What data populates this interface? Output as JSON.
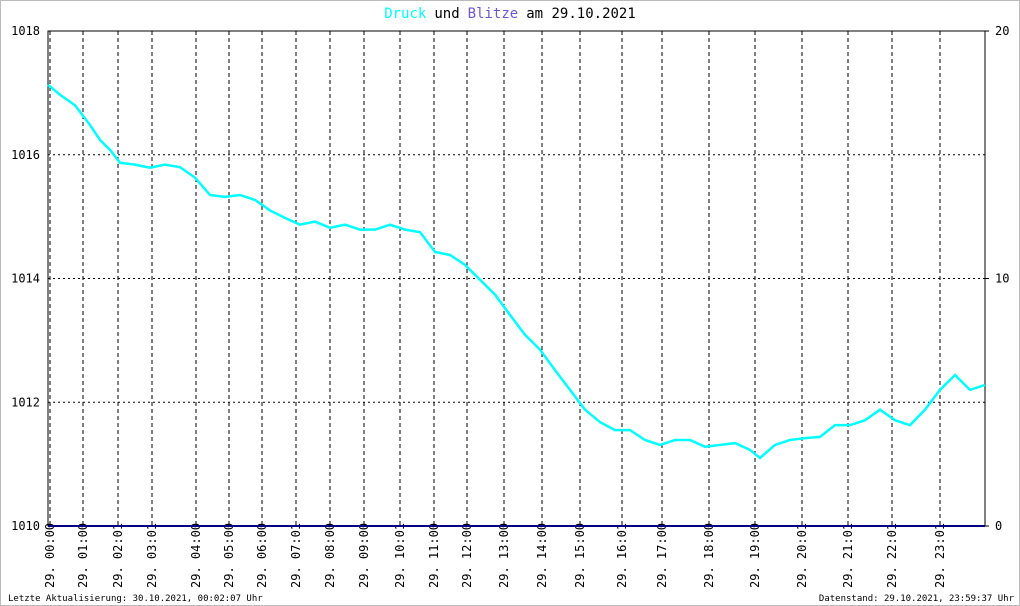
{
  "chart_data": {
    "type": "line",
    "title_connector": "und",
    "title_date": "am 29.10.2021",
    "footer_left": "Letzte Aktualisierung: 30.10.2021, 00:02:07 Uhr",
    "footer_right": "Datenstand: 29.10.2021, 23:59:37 Uhr",
    "x": [
      0,
      12,
      27,
      42,
      52,
      62,
      72,
      87,
      102,
      117,
      132,
      147,
      162,
      177,
      192,
      207,
      222,
      237,
      252,
      267,
      282,
      297,
      312,
      327,
      342,
      357,
      372,
      387,
      402,
      417,
      432,
      447,
      462,
      477,
      492,
      507,
      522,
      537,
      552,
      567,
      582,
      597,
      612,
      627,
      642,
      657,
      672,
      687,
      702,
      712,
      727,
      742,
      757,
      772,
      787,
      802,
      817,
      832,
      847,
      862,
      877,
      892,
      907,
      922,
      937
    ],
    "xlim": [
      0,
      937
    ],
    "xticks": [
      {
        "value": 2,
        "label": "29. 00:00"
      },
      {
        "value": 35,
        "label": "29. 01:00"
      },
      {
        "value": 70,
        "label": "29. 02:01"
      },
      {
        "value": 104,
        "label": "29. 03:01"
      },
      {
        "value": 148,
        "label": "29. 04:00"
      },
      {
        "value": 181,
        "label": "29. 05:00"
      },
      {
        "value": 214,
        "label": "29. 06:00"
      },
      {
        "value": 248,
        "label": "29. 07:01"
      },
      {
        "value": 282,
        "label": "29. 08:00"
      },
      {
        "value": 316,
        "label": "29. 09:00"
      },
      {
        "value": 352,
        "label": "29. 10:01"
      },
      {
        "value": 386,
        "label": "29. 11:00"
      },
      {
        "value": 419,
        "label": "29. 12:00"
      },
      {
        "value": 456,
        "label": "29. 13:00"
      },
      {
        "value": 494,
        "label": "29. 14:00"
      },
      {
        "value": 532,
        "label": "29. 15:00"
      },
      {
        "value": 574,
        "label": "29. 16:01"
      },
      {
        "value": 614,
        "label": "29. 17:00"
      },
      {
        "value": 661,
        "label": "29. 18:00"
      },
      {
        "value": 707,
        "label": "29. 19:00"
      },
      {
        "value": 754,
        "label": "29. 20:01"
      },
      {
        "value": 800,
        "label": "29. 21:01"
      },
      {
        "value": 844,
        "label": "29. 22:01"
      },
      {
        "value": 892,
        "label": "29. 23:01"
      }
    ],
    "ylim": [
      1010,
      1018
    ],
    "yticks": [
      1010,
      1012,
      1014,
      1016,
      1018
    ],
    "y2lim": [
      0,
      20
    ],
    "y2ticks": [
      0,
      10,
      20
    ],
    "grid": true,
    "series": [
      {
        "name": "Druck",
        "color": "#00ffff",
        "axis": "y",
        "values": [
          1017.13,
          1016.97,
          1016.8,
          1016.48,
          1016.24,
          1016.08,
          1015.87,
          1015.84,
          1015.79,
          1015.84,
          1015.8,
          1015.63,
          1015.35,
          1015.32,
          1015.35,
          1015.27,
          1015.1,
          1014.98,
          1014.87,
          1014.92,
          1014.82,
          1014.87,
          1014.79,
          1014.79,
          1014.87,
          1014.79,
          1014.75,
          1014.43,
          1014.38,
          1014.22,
          1013.98,
          1013.74,
          1013.41,
          1013.09,
          1012.85,
          1012.52,
          1012.2,
          1011.88,
          1011.68,
          1011.55,
          1011.55,
          1011.39,
          1011.31,
          1011.39,
          1011.39,
          1011.28,
          1011.31,
          1011.34,
          1011.23,
          1011.1,
          1011.31,
          1011.39,
          1011.42,
          1011.44,
          1011.63,
          1011.63,
          1011.71,
          1011.88,
          1011.71,
          1011.63,
          1011.88,
          1012.2,
          1012.44,
          1012.2,
          1012.28
        ]
      },
      {
        "name": "Blitze",
        "color": "#000080",
        "title_color": "#6a5acd",
        "axis": "y2",
        "values": [
          0,
          0,
          0,
          0,
          0,
          0,
          0,
          0,
          0,
          0,
          0,
          0,
          0,
          0,
          0,
          0,
          0,
          0,
          0,
          0,
          0,
          0,
          0,
          0,
          0,
          0,
          0,
          0,
          0,
          0,
          0,
          0,
          0,
          0,
          0,
          0,
          0,
          0,
          0,
          0,
          0,
          0,
          0,
          0,
          0,
          0,
          0,
          0,
          0,
          0,
          0,
          0,
          0,
          0,
          0,
          0,
          0,
          0,
          0,
          0,
          0,
          0,
          0,
          0,
          0
        ]
      }
    ]
  }
}
